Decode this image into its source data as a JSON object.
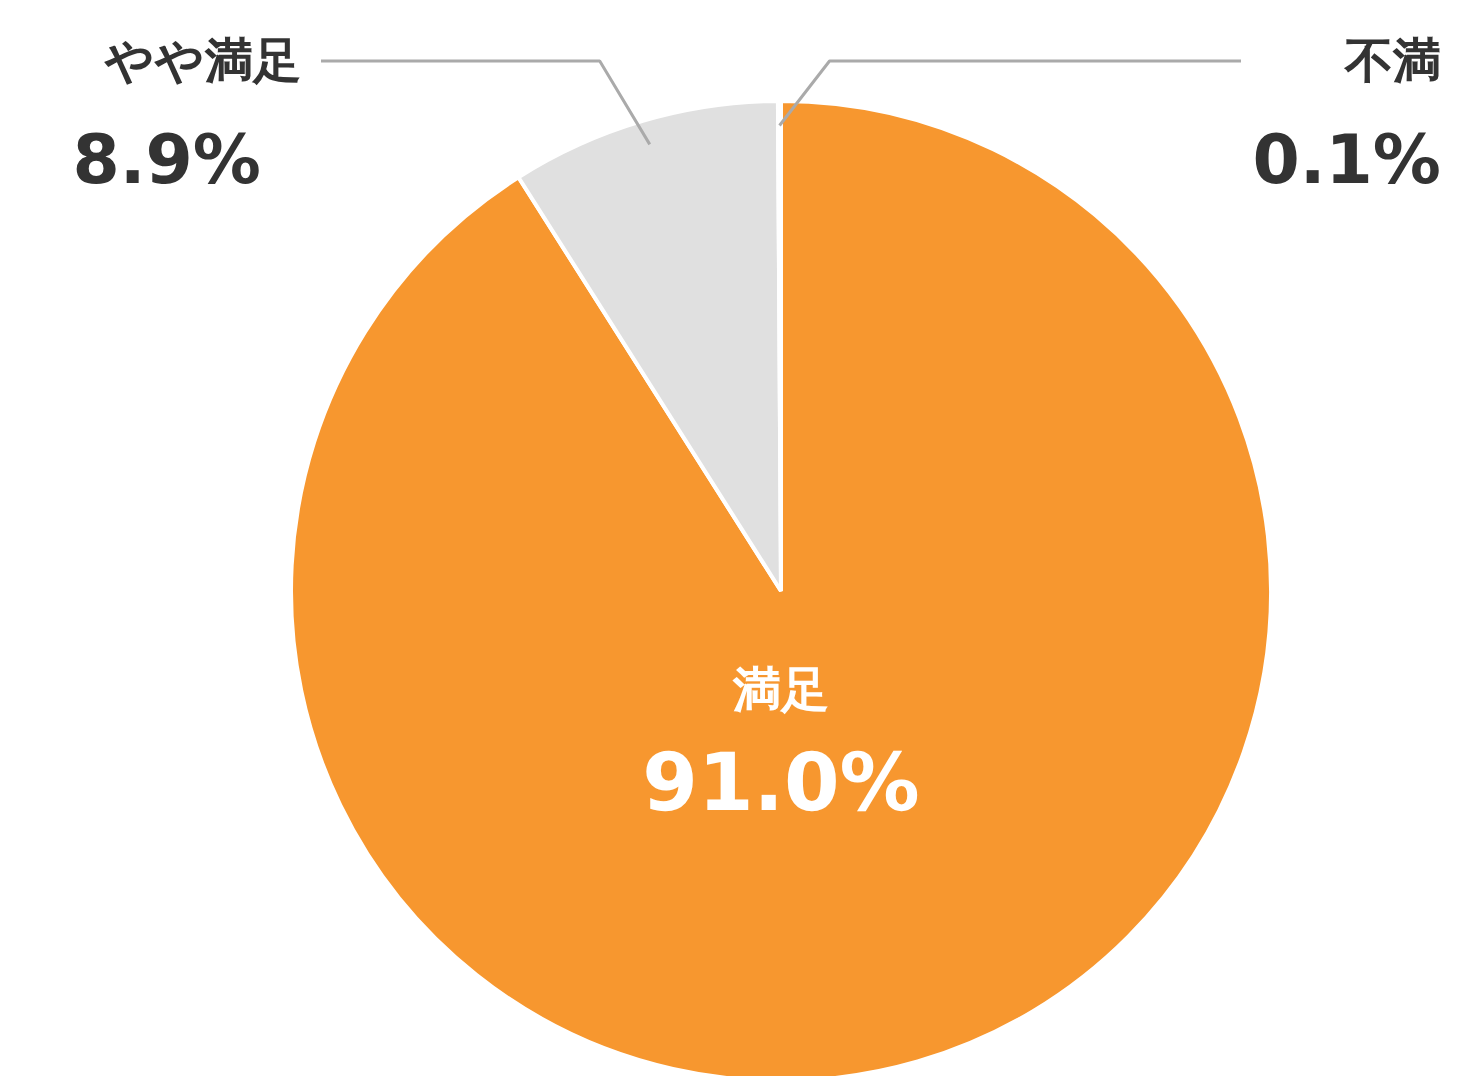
{
  "chart_data": {
    "type": "pie",
    "categories": [
      "満足",
      "やや満足",
      "不満"
    ],
    "values": [
      91.0,
      8.9,
      0.1
    ],
    "value_labels": [
      "91.0%",
      "8.9%",
      "0.1%"
    ],
    "colors": [
      "#f7972f",
      "#e0e0e0",
      "#8a8a8a"
    ]
  }
}
